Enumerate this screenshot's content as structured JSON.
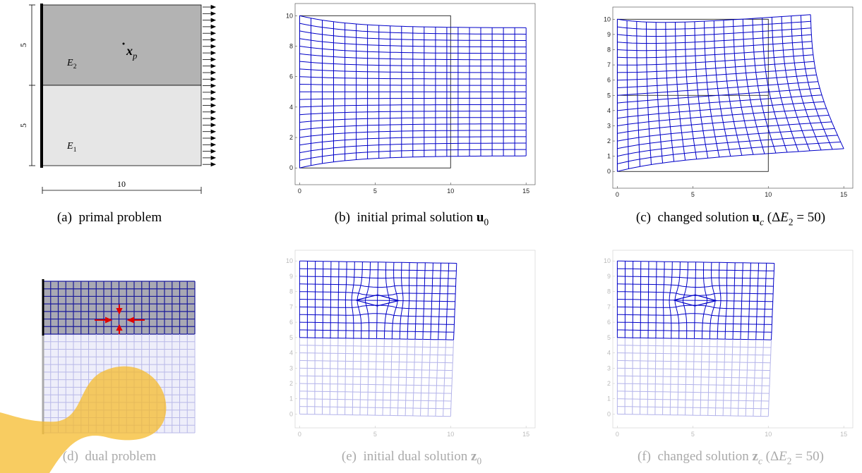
{
  "panels": [
    {
      "caption": [
        {
          "text": "(a)  primal problem",
          "style": "normal"
        }
      ],
      "dimensions": {
        "left_upper": "5",
        "left_lower": "5",
        "bottom": "10"
      },
      "region_labels": [
        [
          {
            "text": "E",
            "style": "italic"
          },
          {
            "text": "2",
            "style": "sub"
          }
        ],
        [
          {
            "text": "E",
            "style": "italic"
          },
          {
            "text": "1",
            "style": "sub"
          }
        ]
      ],
      "point_label": [
        {
          "text": "x",
          "style": "bold-italic"
        },
        {
          "text": "p",
          "style": "sub-italic"
        }
      ]
    },
    {
      "caption": [
        {
          "text": "(b)  initial primal solution ",
          "style": "normal"
        },
        {
          "text": "u",
          "style": "bold"
        },
        {
          "text": "0",
          "style": "sub"
        }
      ],
      "xlim": [
        -0.3,
        15.6
      ],
      "ylim": [
        -1.1,
        10.8
      ],
      "xticks": [
        0,
        5,
        10,
        15
      ],
      "yticks": [
        0,
        2,
        4,
        6,
        8,
        10
      ]
    },
    {
      "caption": [
        {
          "text": "(c)  changed solution ",
          "style": "normal"
        },
        {
          "text": "u",
          "style": "bold"
        },
        {
          "text": "c",
          "style": "sub-italic"
        },
        {
          "text": " (Δ",
          "style": "normal"
        },
        {
          "text": "E",
          "style": "italic"
        },
        {
          "text": "2",
          "style": "sub"
        },
        {
          "text": " = 50)",
          "style": "normal"
        }
      ],
      "xlim": [
        -0.3,
        15.6
      ],
      "ylim": [
        -1.1,
        10.8
      ],
      "xticks": [
        0,
        5,
        10,
        15
      ],
      "yticks": [
        0,
        1,
        2,
        3,
        4,
        5,
        6,
        7,
        8,
        9,
        10
      ]
    },
    {
      "caption": [
        {
          "text": "(d)  dual problem",
          "style": "normal"
        }
      ]
    },
    {
      "caption": [
        {
          "text": "(e)  initial dual solution ",
          "style": "normal"
        },
        {
          "text": "z",
          "style": "bold"
        },
        {
          "text": "0",
          "style": "sub"
        }
      ],
      "xlim": [
        -0.3,
        15.6
      ],
      "ylim": [
        -0.9,
        10.7
      ],
      "xticks": [
        0,
        5,
        10,
        15
      ],
      "yticks": [
        0,
        1,
        2,
        3,
        4,
        5,
        6,
        7,
        8,
        9,
        10
      ]
    },
    {
      "caption": [
        {
          "text": "(f)  changed solution ",
          "style": "normal"
        },
        {
          "text": "z",
          "style": "bold"
        },
        {
          "text": "c",
          "style": "sub-italic"
        },
        {
          "text": " (Δ",
          "style": "normal"
        },
        {
          "text": "E",
          "style": "italic"
        },
        {
          "text": "2",
          "style": "sub"
        },
        {
          "text": " = 50)",
          "style": "normal"
        }
      ],
      "xlim": [
        -0.3,
        15.6
      ],
      "ylim": [
        -0.9,
        10.7
      ],
      "xticks": [
        0,
        5,
        10,
        15
      ],
      "yticks": [
        0,
        1,
        2,
        3,
        4,
        5,
        6,
        7,
        8,
        9,
        10
      ]
    }
  ]
}
